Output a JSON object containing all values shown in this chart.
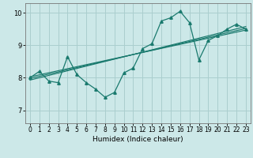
{
  "xlabel": "Humidex (Indice chaleur)",
  "bg_color": "#cce8e8",
  "line_color": "#1a7a6e",
  "grid_color": "#aacece",
  "xlim": [
    -0.5,
    23.5
  ],
  "ylim": [
    6.6,
    10.3
  ],
  "yticks": [
    7,
    8,
    9,
    10
  ],
  "xticks": [
    0,
    1,
    2,
    3,
    4,
    5,
    6,
    7,
    8,
    9,
    10,
    11,
    12,
    13,
    14,
    15,
    16,
    17,
    18,
    19,
    20,
    21,
    22,
    23
  ],
  "data_x": [
    0,
    1,
    2,
    3,
    4,
    5,
    6,
    7,
    8,
    9,
    10,
    11,
    12,
    13,
    14,
    15,
    16,
    17,
    18,
    19,
    20,
    21,
    22,
    23
  ],
  "data_y": [
    8.0,
    8.2,
    7.9,
    7.85,
    8.65,
    8.1,
    7.85,
    7.65,
    7.4,
    7.55,
    8.15,
    8.3,
    8.9,
    9.05,
    9.75,
    9.85,
    10.05,
    9.7,
    8.55,
    9.15,
    9.3,
    9.5,
    9.65,
    9.5
  ],
  "trend1_x": [
    0,
    23
  ],
  "trend1_y": [
    7.98,
    9.52
  ],
  "trend2_x": [
    0,
    23
  ],
  "trend2_y": [
    7.93,
    9.58
  ],
  "trend3_x": [
    0,
    23
  ],
  "trend3_y": [
    8.03,
    9.47
  ],
  "xlabel_fontsize": 6.5,
  "tick_fontsize": 5.5
}
